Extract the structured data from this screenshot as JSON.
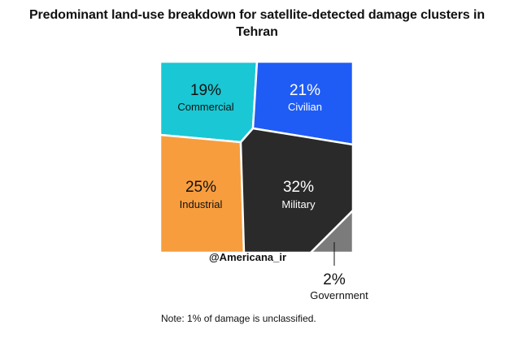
{
  "chart_data": {
    "type": "voronoi treemap",
    "title_lines": [
      "Predominant land-use breakdown for satellite-detected damage clusters in",
      "Tehran"
    ],
    "segments": [
      {
        "name": "Commercial",
        "value": 19,
        "label": "19%",
        "color": "#19c8d4",
        "text_color": "#111111"
      },
      {
        "name": "Civilian",
        "value": 21,
        "label": "21%",
        "color": "#1f5cf5",
        "text_color": "#ffffff"
      },
      {
        "name": "Industrial",
        "value": 25,
        "label": "25%",
        "color": "#f79d3e",
        "text_color": "#111111"
      },
      {
        "name": "Military",
        "value": 32,
        "label": "32%",
        "color": "#2a2a2a",
        "text_color": "#ffffff"
      },
      {
        "name": "Government",
        "value": 2,
        "label": "2%",
        "color": "#7b7b7b",
        "text_color": "#111111"
      }
    ],
    "note": "Note: 1% of damage is unclassified."
  },
  "watermark": "@Americana_ir"
}
